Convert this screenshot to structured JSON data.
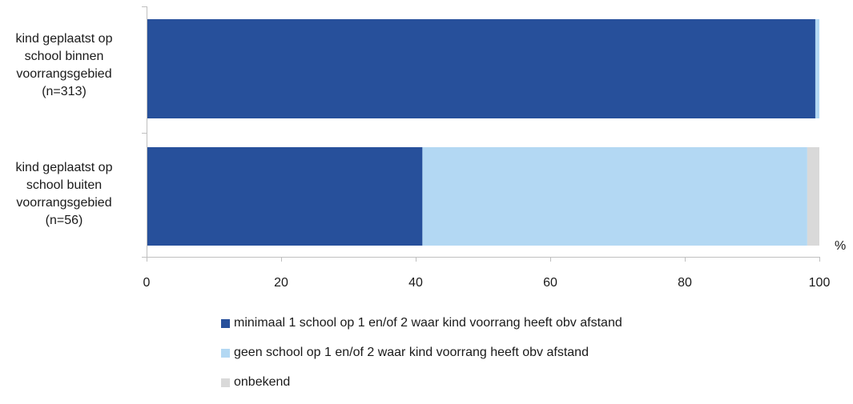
{
  "chart_data": {
    "type": "bar",
    "orientation": "horizontal",
    "stacked": true,
    "categories": [
      "kind geplaatst op\nschool binnen\nvoorrangsgebied\n(n=313)",
      "kind geplaatst op\nschool buiten\nvoorrangsgebied\n(n=56)"
    ],
    "series": [
      {
        "name": "minimaal 1 school op 1 en/of 2 waar kind voorrang heeft obv afstand",
        "color": "#27509b",
        "values": [
          99.4,
          41
        ]
      },
      {
        "name": "geen school op 1 en/of 2 waar kind voorrang heeft obv afstand",
        "color": "#b3d8f3",
        "values": [
          0.6,
          57.2
        ]
      },
      {
        "name": "onbekend",
        "color": "#d9d9d9",
        "values": [
          0,
          1.8
        ]
      }
    ],
    "xlim": [
      0,
      100
    ],
    "xticks": [
      0,
      20,
      40,
      60,
      80,
      100
    ],
    "xunit": "%",
    "grid": false,
    "legend_position": "bottom"
  }
}
